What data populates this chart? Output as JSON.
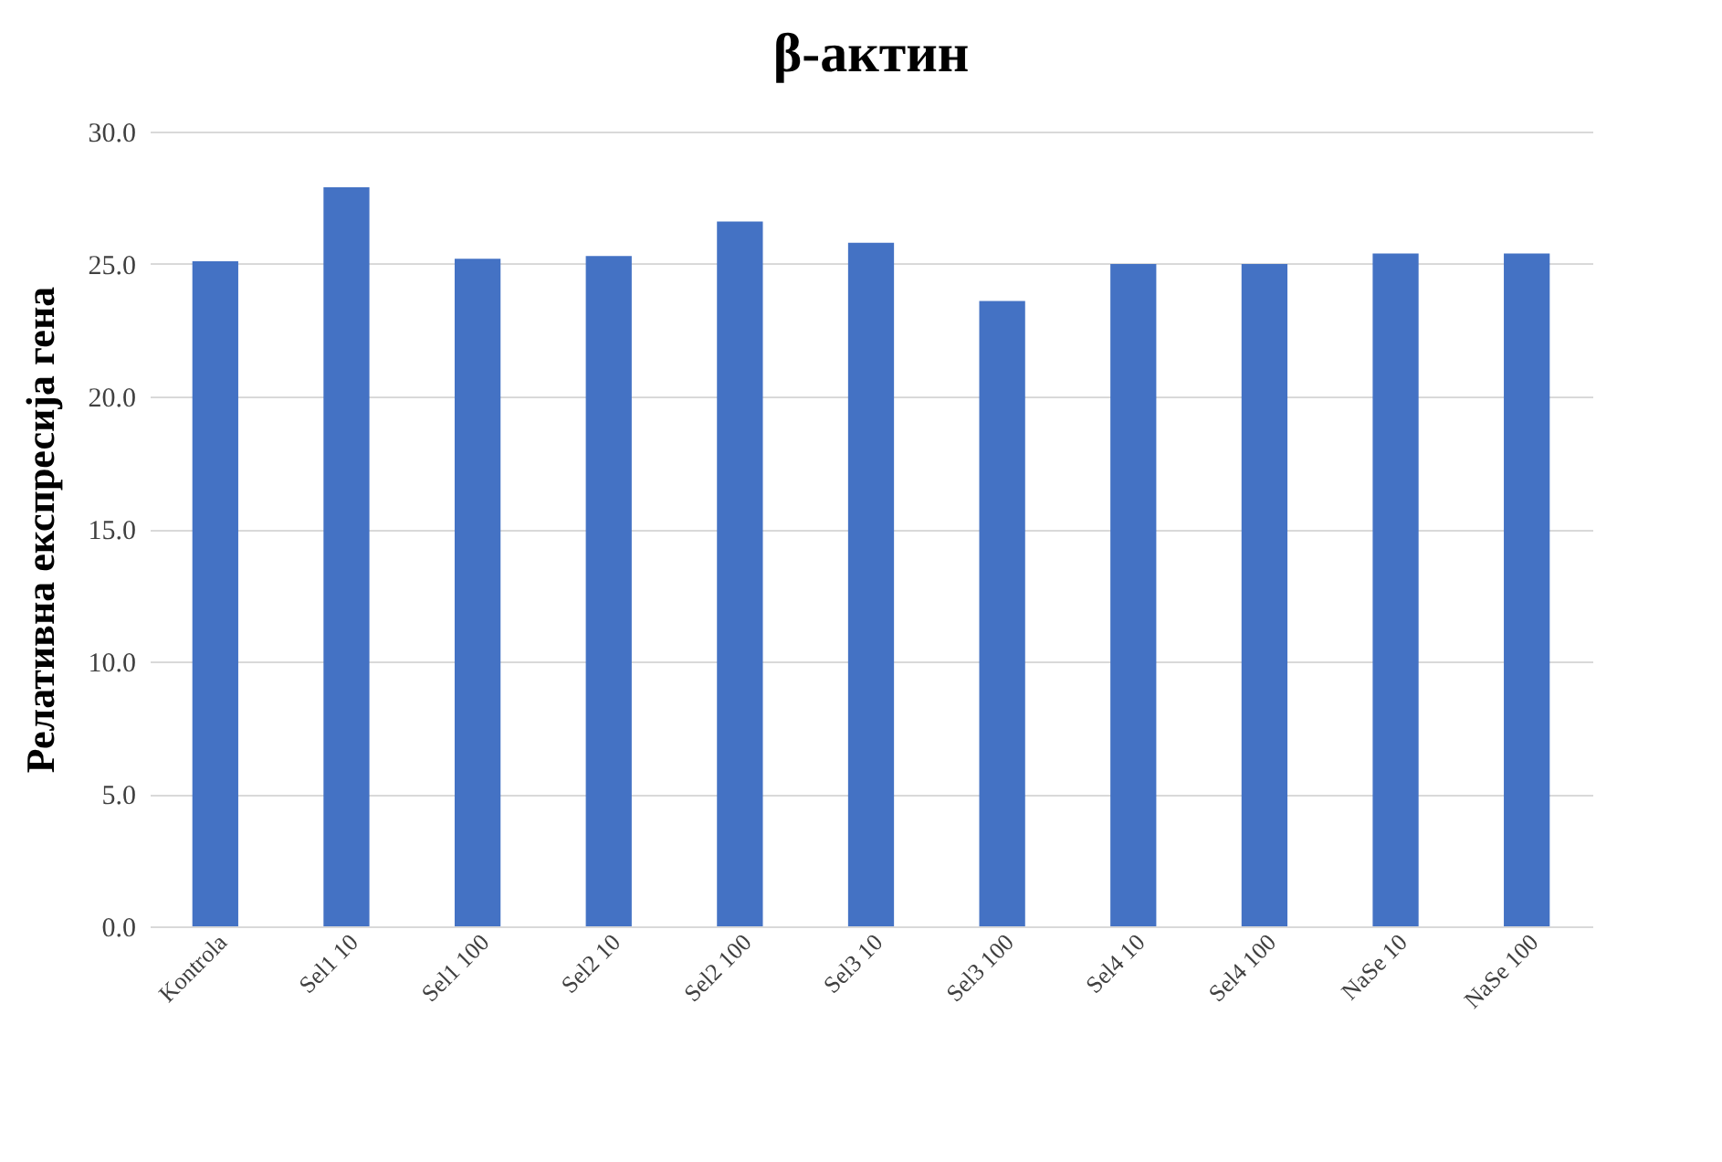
{
  "chart_data": {
    "type": "bar",
    "title": "β-актин",
    "ylabel": "Релативна експресија гена",
    "categories": [
      "Kontrola",
      "Sel1 10",
      "Sel1 100",
      "Sel2 10",
      "Sel2 100",
      "Sel3 10",
      "Sel3 100",
      "Sel4 10",
      "Sel4 100",
      "NaSe 10",
      "NaSe 100"
    ],
    "values": [
      25.1,
      27.9,
      25.2,
      25.3,
      26.6,
      25.8,
      23.6,
      25.0,
      25.0,
      25.4,
      25.4
    ],
    "color": "#4472c4",
    "ylim": [
      0,
      30
    ],
    "yticks": [
      {
        "value": 0,
        "label": "0.0"
      },
      {
        "value": 5,
        "label": "5.0"
      },
      {
        "value": 10,
        "label": "10.0"
      },
      {
        "value": 15,
        "label": "15.0"
      },
      {
        "value": 20,
        "label": "20.0"
      },
      {
        "value": 25,
        "label": "25.0"
      },
      {
        "value": 30,
        "label": "30.0"
      }
    ],
    "grid": "y"
  }
}
